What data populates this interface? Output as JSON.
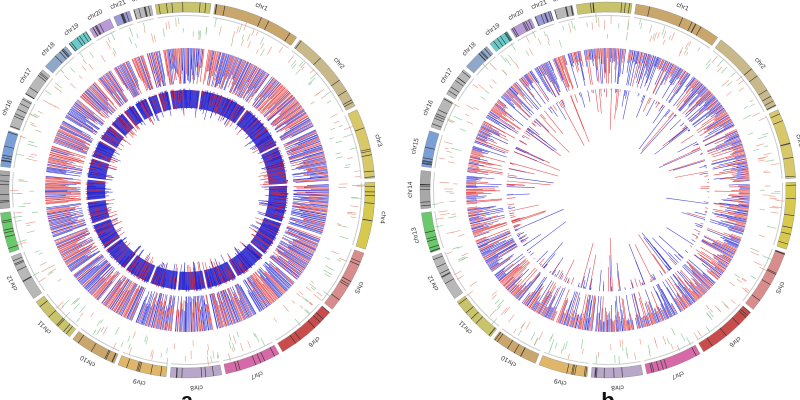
{
  "panels": [
    {
      "label": "a",
      "chromosomes": [
        "chr1",
        "chr2",
        "chr3",
        "chr4",
        "chr5",
        "chr6",
        "chr7",
        "chr8",
        "chr9",
        "chr10",
        "chr11",
        "chr12",
        "chr13",
        "chr14",
        "chr15",
        "chr16",
        "chr17",
        "chr18",
        "chr19",
        "chr20",
        "chr21",
        "chr22",
        "chrX"
      ],
      "ideogram_colors": [
        "#c9a66b",
        "#c9b98a",
        "#d8c86a",
        "#d6c94e",
        "#d98c8c",
        "#c94c4c",
        "#d66aa8",
        "#b9a7c9",
        "#e0b76a",
        "#c9a66b",
        "#c9c46b",
        "#b8b8b8",
        "#6ac96a",
        "#a8a8a8",
        "#7a9fd6",
        "#b8b8b8",
        "#b8b8b8",
        "#8fa8c9",
        "#6ac9c9",
        "#b89ad6",
        "#9a9ad6",
        "#b8b8b8",
        "#c9c46b"
      ],
      "inner_track_style": "dense"
    },
    {
      "label": "b",
      "chromosomes": [
        "chr1",
        "chr2",
        "chr3",
        "chr4",
        "chr5",
        "chr6",
        "chr7",
        "chr8",
        "chr9",
        "chr10",
        "chr11",
        "chr12",
        "chr13",
        "chr14",
        "chr15",
        "chr16",
        "chr17",
        "chr18",
        "chr19",
        "chr20",
        "chr21",
        "chr22",
        "chrX"
      ],
      "ideogram_colors": [
        "#c9a66b",
        "#c9b98a",
        "#d8c86a",
        "#d6c94e",
        "#d98c8c",
        "#c94c4c",
        "#d66aa8",
        "#b9a7c9",
        "#e0b76a",
        "#c9a66b",
        "#c9c46b",
        "#b8b8b8",
        "#6ac96a",
        "#a8a8a8",
        "#7a9fd6",
        "#b8b8b8",
        "#b8b8b8",
        "#8fa8c9",
        "#6ac9c9",
        "#b89ad6",
        "#9a9ad6",
        "#b8b8b8",
        "#c9c46b"
      ],
      "inner_track_style": "sparse"
    }
  ],
  "colors": {
    "blue": "#1f1fd0",
    "red": "#e0282a",
    "salmon": "#e8907a",
    "green": "#7cc48a",
    "ring_bg": "#ffffff"
  }
}
